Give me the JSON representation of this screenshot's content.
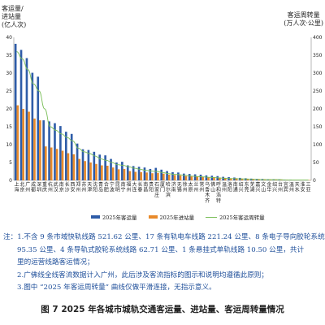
{
  "chart_data": {
    "type": "bar",
    "ylabel_left": [
      "亿人次",
      "进站量",
      "客运量/"
    ],
    "ylabel_right": [
      "客运周转量",
      "(万人次·公里)"
    ],
    "ylim_left": [
      0,
      40
    ],
    "yticks_left": [
      0,
      5,
      10,
      15,
      20,
      25,
      30,
      35,
      40
    ],
    "ylim_right": [
      0,
      400
    ],
    "yticks_right": [
      0,
      50,
      100,
      150,
      200,
      250,
      300,
      350,
      400
    ],
    "categories": [
      "上海",
      "北京",
      "广州",
      "深圳",
      "成都",
      "重庆",
      "杭州",
      "武汉",
      "南京",
      "长沙",
      "西安",
      "郑州",
      "苏州",
      "天津",
      "沈阳",
      "青岛",
      "合肥",
      "昆明",
      "宁波",
      "大连",
      "南宁",
      "福州",
      "南昌",
      "长春",
      "哈尔滨",
      "贵阳",
      "石家庄",
      "厦门",
      "济南",
      "无锡",
      "太原",
      "兰州",
      "乌鲁木齐",
      "徐州",
      "洛阳",
      "佛山",
      "东莞",
      "常州",
      "南通",
      "绍兴",
      "温州",
      "芜湖",
      "呼和浩特",
      "嘉兴",
      "泉州",
      "金华",
      "绍兴2",
      "台州",
      "宜宾",
      "天水",
      "文山",
      "淮安",
      "三亚"
    ],
    "category_labels": [
      "上\n海",
      "北\n京",
      "广\n州",
      "成\n都",
      "深\n圳",
      "重\n庆",
      "杭\n州",
      "武\n汉",
      "南\n京",
      "长\n沙",
      "西\n安",
      "郑\n州",
      "苏\n州",
      "天\n津",
      "沈\n阳",
      "青\n岛",
      "合\n肥",
      "宁\n波",
      "昆\n明",
      "南\n宁",
      "福\n州",
      "大\n连",
      "长\n春",
      "南\n昌",
      "贵\n阳",
      "石\n家\n庄",
      "厦\n门",
      "哈\n尔\n滨",
      "济\n南",
      "无\n锡",
      "徐\n州",
      "太\n原",
      "兰\n州",
      "常\n州",
      "乌\n鲁\n木\n齐",
      "佛\n山",
      "呼\n和\n浩\n特",
      "温\n州",
      "洛\n阳",
      "南\n通",
      "绍\n兴",
      "东\n莞",
      "芜\n湖",
      "嘉\n兴",
      "文\n山",
      "金\n华",
      "绍\n兴",
      "台\n州",
      "宜\n宾",
      "温\n州",
      "天\n水",
      "淮\n安",
      "三\n亚"
    ],
    "series": [
      {
        "name": "2025年客运量",
        "color": "#2e5ca8",
        "values": [
          38.2,
          36.5,
          34.2,
          30.1,
          29.0,
          16.8,
          16.5,
          16.0,
          15.2,
          13.6,
          13.0,
          10.3,
          8.7,
          8.5,
          8.0,
          7.2,
          7.0,
          6.0,
          5.0,
          5.2,
          4.2,
          4.0,
          3.8,
          3.6,
          3.2,
          3.5,
          3.0,
          2.6,
          2.3,
          2.2,
          1.9,
          1.8,
          1.7,
          1.6,
          1.4,
          1.3,
          1.2,
          1.0,
          0.9,
          0.8,
          0.7,
          0.6,
          0.5,
          0.4,
          0.4,
          0.3,
          0.3,
          0.2,
          0.2,
          0.2,
          0.1,
          0.1,
          0.1
        ]
      },
      {
        "name": "2025年进站量",
        "color": "#e88a2a",
        "values": [
          21.0,
          20.0,
          19.2,
          17.3,
          16.8,
          9.5,
          9.2,
          8.8,
          8.3,
          7.6,
          7.3,
          6.0,
          5.4,
          5.0,
          4.6,
          4.2,
          4.1,
          3.6,
          3.1,
          3.2,
          2.6,
          2.4,
          2.3,
          2.2,
          2.0,
          2.1,
          1.9,
          1.6,
          1.5,
          1.4,
          1.2,
          1.1,
          1.1,
          1.0,
          0.9,
          0.9,
          0.8,
          0.7,
          0.6,
          0.6,
          0.5,
          0.4,
          0.4,
          0.3,
          0.3,
          0.2,
          0.2,
          0.2,
          0.2,
          0.1,
          0.1,
          0.1,
          0.1
        ]
      },
      {
        "name": "2025年客运周转量",
        "color": "#7bbf5a",
        "values": [
          360,
          340,
          310,
          270,
          250,
          200,
          150,
          140,
          130,
          120,
          110,
          90,
          80,
          75,
          68,
          60,
          56,
          50,
          44,
          42,
          38,
          34,
          31,
          28,
          26,
          25,
          22,
          19,
          17,
          16,
          14,
          12,
          11,
          10,
          9,
          8,
          7,
          6,
          5,
          5,
          4,
          4,
          3,
          3,
          2,
          2,
          2,
          2,
          1,
          1,
          1,
          1,
          1
        ]
      }
    ],
    "legend_position": "bottom"
  },
  "legend": [
    "2025年客运量",
    "2025年进站量",
    "2025年客运周转量"
  ],
  "notes": {
    "line1": "注：1.不含 9 条市域快轨线路 521.62 公里、17 条有轨电车线路 221.24 公里、8 条电子导向胶轮系统线路",
    "line1b": "95.35 公里、4 条导轨式胶轮系统线路 62.71 公里、1 条悬挂式单轨线路 10.50 公里，共计",
    "line1c": "里的运营线路客运情况；",
    "line2": "2.广佛线全线客流数据计入广州，此后涉及客流指标的图示和说明均遵循此原则；",
    "line3": "3.图中 “2025 年客运周转量” 曲线仅做平滑连接，无指示意义。"
  },
  "figure_title": "图 7    2025 年各城市城轨交通客运量、进站量、客运周转量情况"
}
